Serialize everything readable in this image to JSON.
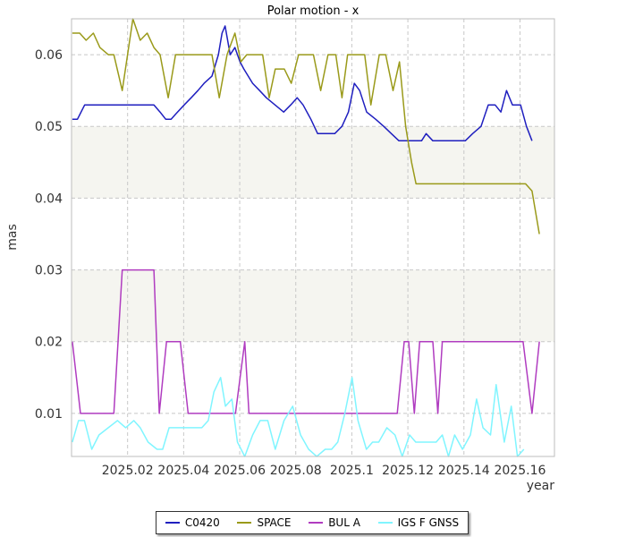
{
  "chart_data": {
    "type": "line",
    "title": "Polar motion - x",
    "xlabel": "year",
    "ylabel": "mas",
    "xlim": [
      2025.0,
      2025.1723
    ],
    "ylim": [
      0.004,
      0.065
    ],
    "xticks": [
      2025.02,
      2025.04,
      2025.06,
      2025.08,
      2025.1,
      2025.12,
      2025.14,
      2025.16
    ],
    "xtick_labels": [
      "2025.02",
      "2025.04",
      "2025.06",
      "2025.08",
      "2025.1",
      "2025.12",
      "2025.14",
      "2025.16"
    ],
    "yticks": [
      0.01,
      0.02,
      0.03,
      0.04,
      0.05,
      0.06
    ],
    "ytick_labels": [
      "0.01",
      "0.02",
      "0.03",
      "0.04",
      "0.05",
      "0.06"
    ],
    "shaded_bands": [
      [
        0.02,
        0.03
      ],
      [
        0.04,
        0.05
      ]
    ],
    "grid": true,
    "legend_position": "bottom-center",
    "series": [
      {
        "name": "C0420",
        "color": "#1f1fbf",
        "points": [
          [
            2025.0003,
            0.051
          ],
          [
            2025.0021,
            0.051
          ],
          [
            2025.0047,
            0.053
          ],
          [
            2025.0072,
            0.053
          ],
          [
            2025.0121,
            0.053
          ],
          [
            2025.0148,
            0.053
          ],
          [
            2025.0181,
            0.053
          ],
          [
            2025.0219,
            0.053
          ],
          [
            2025.0245,
            0.053
          ],
          [
            2025.027,
            0.053
          ],
          [
            2025.0294,
            0.053
          ],
          [
            2025.0316,
            0.052
          ],
          [
            2025.0336,
            0.051
          ],
          [
            2025.0355,
            0.051
          ],
          [
            2025.0378,
            0.052
          ],
          [
            2025.0402,
            0.053
          ],
          [
            2025.0427,
            0.054
          ],
          [
            2025.0451,
            0.055
          ],
          [
            2025.0473,
            0.056
          ],
          [
            2025.0501,
            0.057
          ],
          [
            2025.0524,
            0.06
          ],
          [
            2025.0537,
            0.063
          ],
          [
            2025.0548,
            0.064
          ],
          [
            2025.0566,
            0.06
          ],
          [
            2025.0583,
            0.061
          ],
          [
            2025.0601,
            0.059
          ],
          [
            2025.0615,
            0.058
          ],
          [
            2025.0646,
            0.056
          ],
          [
            2025.0671,
            0.055
          ],
          [
            2025.0695,
            0.054
          ],
          [
            2025.0726,
            0.053
          ],
          [
            2025.0757,
            0.052
          ],
          [
            2025.0782,
            0.053
          ],
          [
            2025.0805,
            0.054
          ],
          [
            2025.0826,
            0.053
          ],
          [
            2025.0854,
            0.051
          ],
          [
            2025.0878,
            0.049
          ],
          [
            2025.0905,
            0.049
          ],
          [
            2025.0939,
            0.049
          ],
          [
            2025.0965,
            0.05
          ],
          [
            2025.0988,
            0.052
          ],
          [
            2025.1009,
            0.056
          ],
          [
            2025.1028,
            0.055
          ],
          [
            2025.1053,
            0.052
          ],
          [
            2025.1085,
            0.051
          ],
          [
            2025.1114,
            0.05
          ],
          [
            2025.1141,
            0.049
          ],
          [
            2025.1168,
            0.048
          ],
          [
            2025.1193,
            0.048
          ],
          [
            2025.1224,
            0.048
          ],
          [
            2025.1249,
            0.048
          ],
          [
            2025.1265,
            0.049
          ],
          [
            2025.1289,
            0.048
          ],
          [
            2025.1313,
            0.048
          ],
          [
            2025.1342,
            0.048
          ],
          [
            2025.1365,
            0.048
          ],
          [
            2025.1386,
            0.048
          ],
          [
            2025.1405,
            0.048
          ],
          [
            2025.1431,
            0.049
          ],
          [
            2025.1461,
            0.05
          ],
          [
            2025.1487,
            0.053
          ],
          [
            2025.1511,
            0.053
          ],
          [
            2025.1532,
            0.052
          ],
          [
            2025.1552,
            0.055
          ],
          [
            2025.1573,
            0.053
          ],
          [
            2025.1602,
            0.053
          ],
          [
            2025.1623,
            0.05
          ],
          [
            2025.1643,
            0.048
          ]
        ]
      },
      {
        "name": "SPACE",
        "color": "#9a9a1a",
        "points": [
          [
            2025.0003,
            0.063
          ],
          [
            2025.0029,
            0.063
          ],
          [
            2025.0052,
            0.062
          ],
          [
            2025.0078,
            0.063
          ],
          [
            2025.0101,
            0.061
          ],
          [
            2025.0131,
            0.06
          ],
          [
            2025.0151,
            0.06
          ],
          [
            2025.0181,
            0.055
          ],
          [
            2025.0219,
            0.065
          ],
          [
            2025.0245,
            0.062
          ],
          [
            2025.027,
            0.063
          ],
          [
            2025.0294,
            0.061
          ],
          [
            2025.0316,
            0.06
          ],
          [
            2025.0345,
            0.054
          ],
          [
            2025.0371,
            0.06
          ],
          [
            2025.0402,
            0.06
          ],
          [
            2025.0441,
            0.06
          ],
          [
            2025.0478,
            0.06
          ],
          [
            2025.0501,
            0.06
          ],
          [
            2025.0527,
            0.054
          ],
          [
            2025.0555,
            0.06
          ],
          [
            2025.0583,
            0.063
          ],
          [
            2025.0604,
            0.059
          ],
          [
            2025.0625,
            0.06
          ],
          [
            2025.0654,
            0.06
          ],
          [
            2025.0682,
            0.06
          ],
          [
            2025.0705,
            0.054
          ],
          [
            2025.0727,
            0.058
          ],
          [
            2025.0759,
            0.058
          ],
          [
            2025.0784,
            0.056
          ],
          [
            2025.081,
            0.06
          ],
          [
            2025.0836,
            0.06
          ],
          [
            2025.0863,
            0.06
          ],
          [
            2025.0889,
            0.055
          ],
          [
            2025.0915,
            0.06
          ],
          [
            2025.0943,
            0.06
          ],
          [
            2025.0965,
            0.054
          ],
          [
            2025.0985,
            0.06
          ],
          [
            2025.1017,
            0.06
          ],
          [
            2025.1046,
            0.06
          ],
          [
            2025.1068,
            0.053
          ],
          [
            2025.1098,
            0.06
          ],
          [
            2025.1121,
            0.06
          ],
          [
            2025.1147,
            0.055
          ],
          [
            2025.117,
            0.059
          ],
          [
            2025.1192,
            0.05
          ],
          [
            2025.1213,
            0.045
          ],
          [
            2025.1229,
            0.042
          ],
          [
            2025.1258,
            0.042
          ],
          [
            2025.1289,
            0.042
          ],
          [
            2025.1318,
            0.042
          ],
          [
            2025.1344,
            0.042
          ],
          [
            2025.1373,
            0.042
          ],
          [
            2025.1401,
            0.042
          ],
          [
            2025.1428,
            0.042
          ],
          [
            2025.1456,
            0.042
          ],
          [
            2025.1481,
            0.042
          ],
          [
            2025.1508,
            0.042
          ],
          [
            2025.1536,
            0.042
          ],
          [
            2025.1564,
            0.042
          ],
          [
            2025.1591,
            0.042
          ],
          [
            2025.162,
            0.042
          ],
          [
            2025.1643,
            0.041
          ],
          [
            2025.1669,
            0.035
          ]
        ]
      },
      {
        "name": "BUL A",
        "color": "#b03cc0",
        "points": [
          [
            2025.0003,
            0.02
          ],
          [
            2025.0032,
            0.01
          ],
          [
            2025.0061,
            0.01
          ],
          [
            2025.0095,
            0.01
          ],
          [
            2025.0125,
            0.01
          ],
          [
            2025.0151,
            0.01
          ],
          [
            2025.0181,
            0.03
          ],
          [
            2025.0219,
            0.03
          ],
          [
            2025.0245,
            0.03
          ],
          [
            2025.027,
            0.03
          ],
          [
            2025.0294,
            0.03
          ],
          [
            2025.0313,
            0.01
          ],
          [
            2025.0339,
            0.02
          ],
          [
            2025.0361,
            0.02
          ],
          [
            2025.0388,
            0.02
          ],
          [
            2025.0416,
            0.01
          ],
          [
            2025.0444,
            0.01
          ],
          [
            2025.0474,
            0.01
          ],
          [
            2025.0503,
            0.01
          ],
          [
            2025.053,
            0.01
          ],
          [
            2025.0559,
            0.01
          ],
          [
            2025.0585,
            0.01
          ],
          [
            2025.0618,
            0.02
          ],
          [
            2025.0633,
            0.01
          ],
          [
            2025.0666,
            0.01
          ],
          [
            2025.0695,
            0.01
          ],
          [
            2025.0723,
            0.01
          ],
          [
            2025.0751,
            0.01
          ],
          [
            2025.0779,
            0.01
          ],
          [
            2025.0807,
            0.01
          ],
          [
            2025.0835,
            0.01
          ],
          [
            2025.0864,
            0.01
          ],
          [
            2025.0892,
            0.01
          ],
          [
            2025.092,
            0.01
          ],
          [
            2025.0949,
            0.01
          ],
          [
            2025.0977,
            0.01
          ],
          [
            2025.1006,
            0.01
          ],
          [
            2025.1034,
            0.01
          ],
          [
            2025.1062,
            0.01
          ],
          [
            2025.1091,
            0.01
          ],
          [
            2025.1119,
            0.01
          ],
          [
            2025.1145,
            0.01
          ],
          [
            2025.1162,
            0.01
          ],
          [
            2025.1187,
            0.02
          ],
          [
            2025.1203,
            0.02
          ],
          [
            2025.1223,
            0.01
          ],
          [
            2025.1242,
            0.02
          ],
          [
            2025.1262,
            0.02
          ],
          [
            2025.1289,
            0.02
          ],
          [
            2025.1307,
            0.01
          ],
          [
            2025.1323,
            0.02
          ],
          [
            2025.1345,
            0.02
          ],
          [
            2025.1372,
            0.02
          ],
          [
            2025.1401,
            0.02
          ],
          [
            2025.1431,
            0.02
          ],
          [
            2025.1461,
            0.02
          ],
          [
            2025.1491,
            0.02
          ],
          [
            2025.1521,
            0.02
          ],
          [
            2025.1551,
            0.02
          ],
          [
            2025.1581,
            0.02
          ],
          [
            2025.1611,
            0.02
          ],
          [
            2025.1643,
            0.01
          ],
          [
            2025.1669,
            0.02
          ]
        ]
      },
      {
        "name": "IGS F GNSS",
        "color": "#80f5ff",
        "points": [
          [
            2025.0003,
            0.006
          ],
          [
            2025.0025,
            0.009
          ],
          [
            2025.0046,
            0.009
          ],
          [
            2025.0072,
            0.005
          ],
          [
            2025.0098,
            0.007
          ],
          [
            2025.0131,
            0.008
          ],
          [
            2025.0164,
            0.009
          ],
          [
            2025.0193,
            0.008
          ],
          [
            2025.0222,
            0.009
          ],
          [
            2025.0245,
            0.008
          ],
          [
            2025.0273,
            0.006
          ],
          [
            2025.0305,
            0.005
          ],
          [
            2025.0325,
            0.005
          ],
          [
            2025.0348,
            0.008
          ],
          [
            2025.0377,
            0.008
          ],
          [
            2025.0405,
            0.008
          ],
          [
            2025.0433,
            0.008
          ],
          [
            2025.0465,
            0.008
          ],
          [
            2025.0488,
            0.009
          ],
          [
            2025.0508,
            0.013
          ],
          [
            2025.0532,
            0.015
          ],
          [
            2025.0549,
            0.011
          ],
          [
            2025.0572,
            0.012
          ],
          [
            2025.0592,
            0.006
          ],
          [
            2025.0618,
            0.004
          ],
          [
            2025.0646,
            0.007
          ],
          [
            2025.0673,
            0.009
          ],
          [
            2025.07,
            0.009
          ],
          [
            2025.0727,
            0.005
          ],
          [
            2025.0758,
            0.009
          ],
          [
            2025.0789,
            0.011
          ],
          [
            2025.0817,
            0.007
          ],
          [
            2025.0846,
            0.005
          ],
          [
            2025.0875,
            0.004
          ],
          [
            2025.0905,
            0.005
          ],
          [
            2025.0928,
            0.005
          ],
          [
            2025.095,
            0.006
          ],
          [
            2025.0975,
            0.01
          ],
          [
            2025.1001,
            0.015
          ],
          [
            2025.1022,
            0.009
          ],
          [
            2025.1052,
            0.005
          ],
          [
            2025.1074,
            0.006
          ],
          [
            2025.1096,
            0.006
          ],
          [
            2025.1125,
            0.008
          ],
          [
            2025.1154,
            0.007
          ],
          [
            2025.118,
            0.004
          ],
          [
            2025.1206,
            0.007
          ],
          [
            2025.1228,
            0.006
          ],
          [
            2025.1252,
            0.006
          ],
          [
            2025.1278,
            0.006
          ],
          [
            2025.1301,
            0.006
          ],
          [
            2025.1323,
            0.007
          ],
          [
            2025.1345,
            0.004
          ],
          [
            2025.1367,
            0.007
          ],
          [
            2025.1395,
            0.005
          ],
          [
            2025.1423,
            0.007
          ],
          [
            2025.1445,
            0.012
          ],
          [
            2025.1468,
            0.008
          ],
          [
            2025.1495,
            0.007
          ],
          [
            2025.1515,
            0.014
          ],
          [
            2025.1544,
            0.006
          ],
          [
            2025.1569,
            0.011
          ],
          [
            2025.1591,
            0.004
          ],
          [
            2025.1614,
            0.005
          ]
        ]
      }
    ]
  }
}
